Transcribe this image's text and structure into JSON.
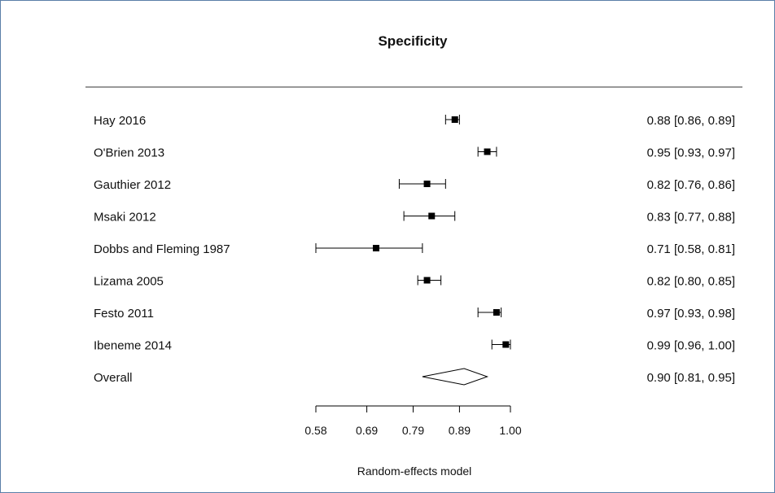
{
  "chart_data": {
    "type": "forest",
    "title": "Specificity",
    "xlabel": "Random-effects model",
    "xlim": [
      0.58,
      1.0
    ],
    "ticks": [
      "0.58",
      "0.69",
      "0.79",
      "0.89",
      "1.00"
    ],
    "studies": [
      {
        "name": "Hay 2016",
        "estimate": 0.88,
        "lower": 0.86,
        "upper": 0.89,
        "text": "0.88 [0.86, 0.89]"
      },
      {
        "name": "O'Brien 2013",
        "estimate": 0.95,
        "lower": 0.93,
        "upper": 0.97,
        "text": "0.95 [0.93, 0.97]"
      },
      {
        "name": "Gauthier 2012",
        "estimate": 0.82,
        "lower": 0.76,
        "upper": 0.86,
        "text": "0.82 [0.76, 0.86]"
      },
      {
        "name": "Msaki 2012",
        "estimate": 0.83,
        "lower": 0.77,
        "upper": 0.88,
        "text": "0.83 [0.77, 0.88]"
      },
      {
        "name": "Dobbs and Fleming 1987",
        "estimate": 0.71,
        "lower": 0.58,
        "upper": 0.81,
        "text": "0.71 [0.58, 0.81]"
      },
      {
        "name": "Lizama 2005",
        "estimate": 0.82,
        "lower": 0.8,
        "upper": 0.85,
        "text": "0.82 [0.80, 0.85]"
      },
      {
        "name": "Festo 2011",
        "estimate": 0.97,
        "lower": 0.93,
        "upper": 0.98,
        "text": "0.97 [0.93, 0.98]"
      },
      {
        "name": "Ibeneme 2014",
        "estimate": 0.99,
        "lower": 0.96,
        "upper": 1.0,
        "text": "0.99 [0.96, 1.00]"
      }
    ],
    "overall": {
      "name": "Overall",
      "estimate": 0.9,
      "lower": 0.81,
      "upper": 0.95,
      "text": "0.90 [0.81, 0.95]"
    }
  }
}
